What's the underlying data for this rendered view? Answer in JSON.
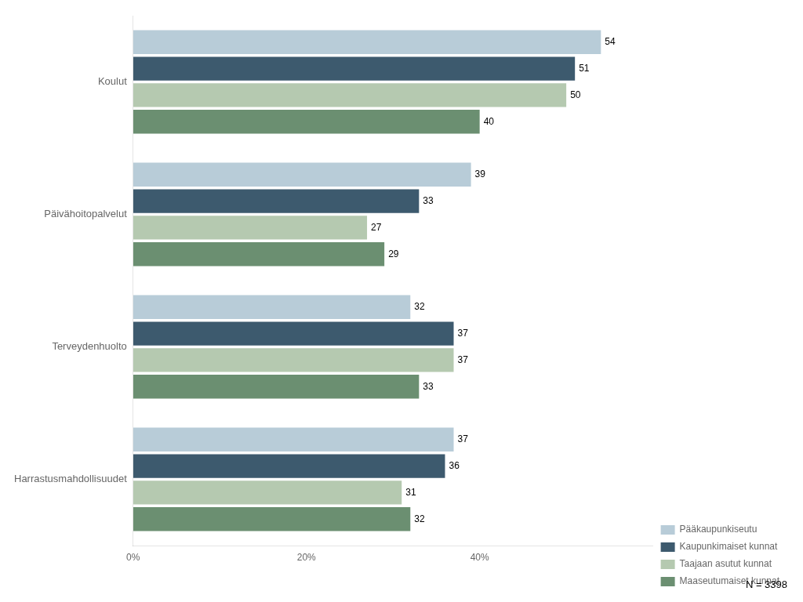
{
  "chart_data": {
    "type": "bar",
    "orientation": "horizontal",
    "categories": [
      "Koulut",
      "Päivähoitopalvelut",
      "Terveydenhuolto",
      "Harrastusmahdollisuudet"
    ],
    "series": [
      {
        "name": "Pääkaupunkiseutu",
        "color": "#b8ccd8",
        "values": [
          54,
          39,
          32,
          37
        ]
      },
      {
        "name": "Kaupunkimaiset kunnat",
        "color": "#3d5a6e",
        "values": [
          51,
          33,
          37,
          36
        ]
      },
      {
        "name": "Taajaan asutut kunnat",
        "color": "#b5c9b0",
        "values": [
          50,
          27,
          37,
          31
        ]
      },
      {
        "name": "Maaseutumaiset kunnat",
        "color": "#6b8f71",
        "values": [
          40,
          29,
          33,
          32
        ]
      }
    ],
    "xlim": [
      0,
      60
    ],
    "xticks": [
      {
        "value": 0,
        "label": "0%"
      },
      {
        "value": 20,
        "label": "20%"
      },
      {
        "value": 40,
        "label": "40%"
      }
    ],
    "grid": false,
    "legend": "lower right",
    "data_labels": true,
    "annotations": [
      "N = 3398"
    ]
  }
}
